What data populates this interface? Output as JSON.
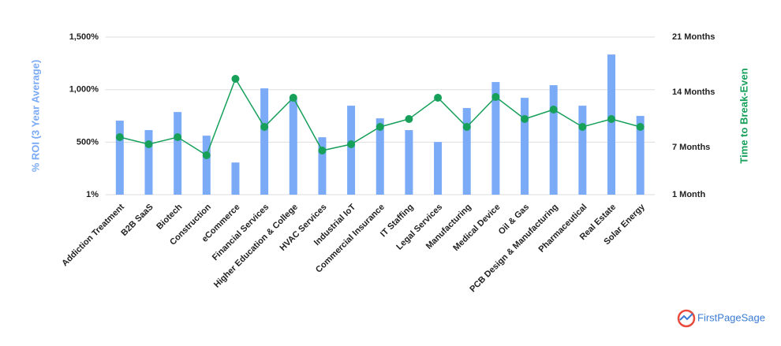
{
  "chart_data": {
    "type": "bar-line",
    "categories": [
      "Addiction Treatment",
      "B2B SaaS",
      "Biotech",
      "Construction",
      "eCommerce",
      "Financial Services",
      "Higher Education & College",
      "HVAC Services",
      "Industrial IoT",
      "Commercial Insurance",
      "IT Staffing",
      "Legal Services",
      "Manufacturing",
      "Medical Device",
      "Oil & Gas",
      "PCB Design & Manufacturing",
      "Pharmaceutical",
      "Real Estate",
      "Solar Energy"
    ],
    "series": [
      {
        "name": "% ROI (3 Year Average)",
        "type": "bar",
        "color": "#7baaf7",
        "values": [
          705,
          615,
          787,
          562,
          307,
          1012,
          915,
          547,
          847,
          727,
          615,
          502,
          825,
          1072,
          922,
          1042,
          847,
          1334,
          750
        ]
      },
      {
        "name": "Time to Break-Even",
        "type": "line",
        "axis": "y2",
        "color": "#16a05a",
        "values": [
          8.3,
          7.4,
          8.3,
          6,
          15.7,
          9.6,
          13.3,
          6.6,
          7.4,
          9.6,
          10.6,
          13.3,
          9.6,
          13.4,
          10.6,
          11.8,
          9.6,
          10.6,
          9.6
        ]
      }
    ],
    "ylim": [
      1,
      1500
    ],
    "yticks": [
      {
        "value": 1,
        "label": "1%"
      },
      {
        "value": 500,
        "label": "500%"
      },
      {
        "value": 1000,
        "label": "1,000%"
      },
      {
        "value": 1500,
        "label": "1,500%"
      }
    ],
    "y2lim": [
      1,
      21
    ],
    "y2ticks": [
      {
        "value": 1,
        "label": "1 Month"
      },
      {
        "value": 7,
        "label": "7 Months"
      },
      {
        "value": 14,
        "label": "14 Months"
      },
      {
        "value": 21,
        "label": "21 Months"
      }
    ],
    "grid": true,
    "watermark": "FirstPageSage"
  }
}
